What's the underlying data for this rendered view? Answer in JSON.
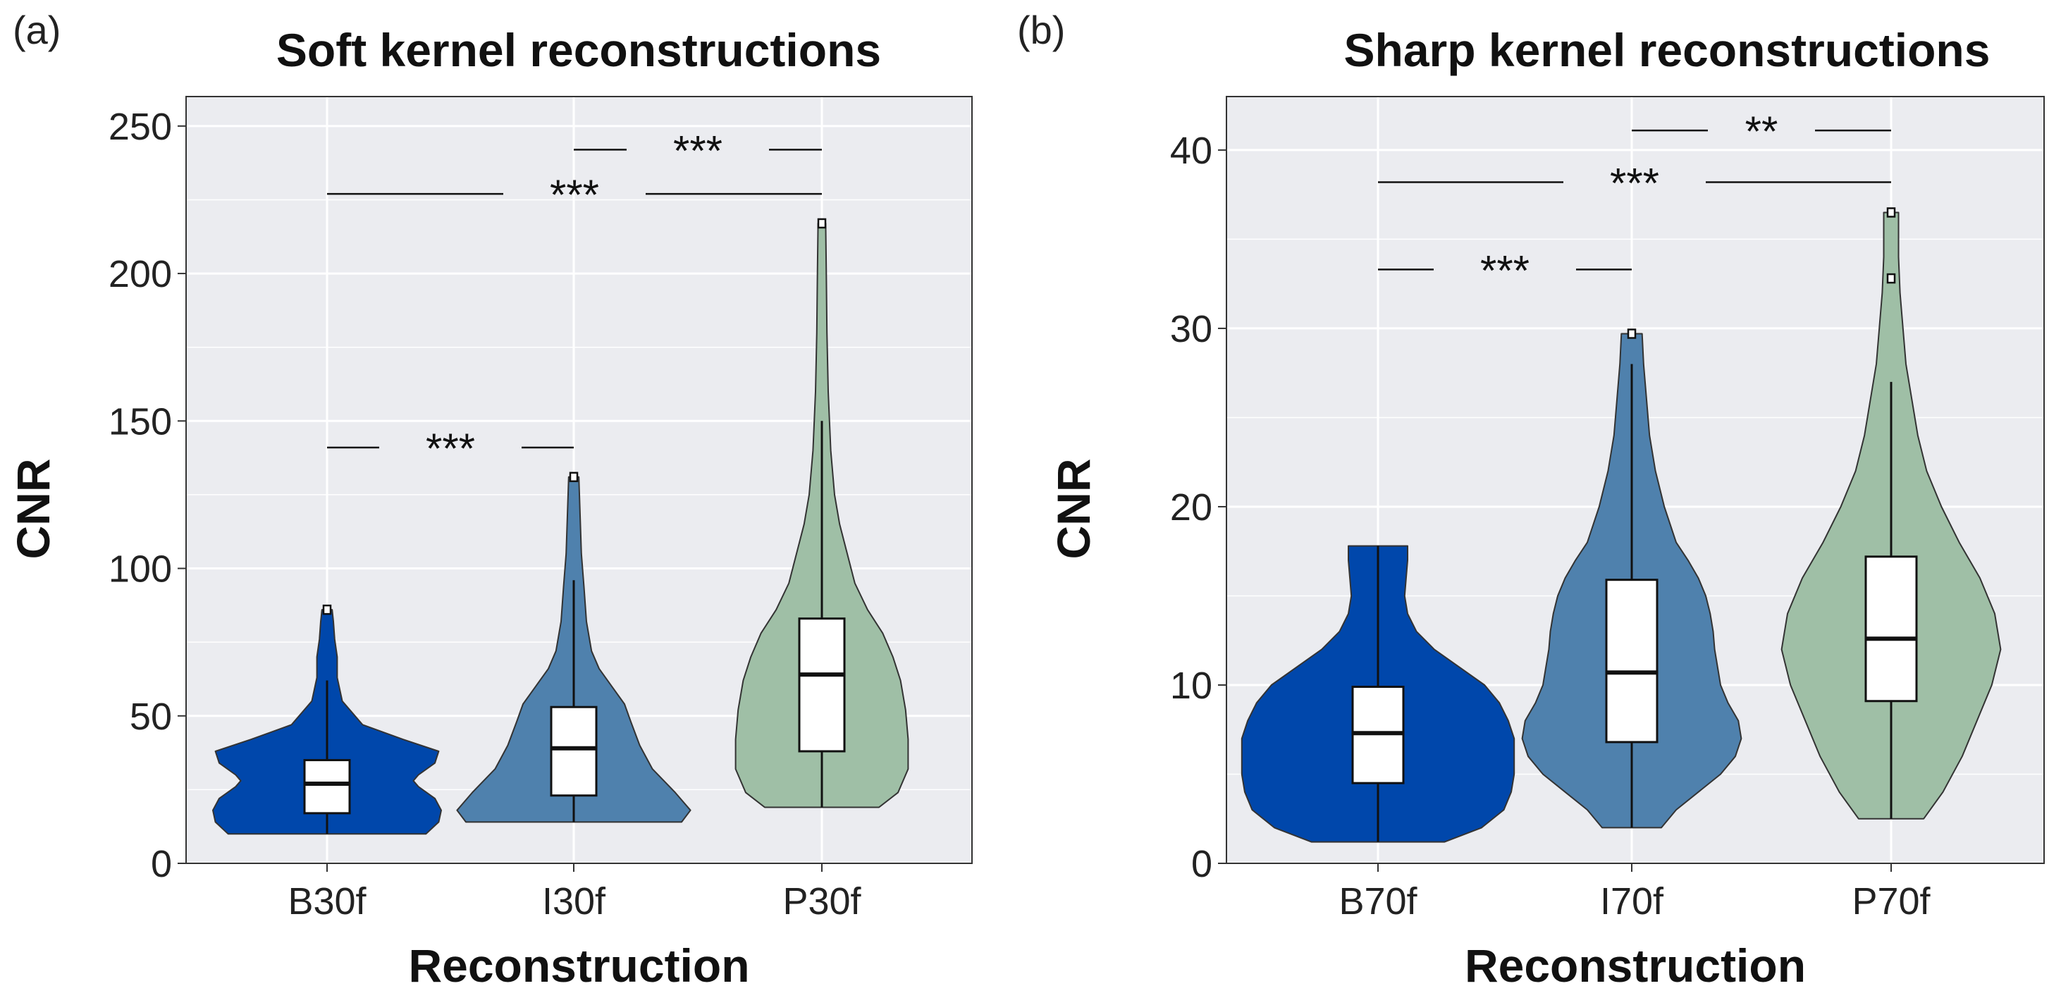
{
  "chart_data": [
    {
      "type": "violin",
      "panel_label": "(a)",
      "title": "Soft kernel reconstructions",
      "xlabel": "Reconstruction",
      "ylabel": "CNR",
      "ylim": [
        0,
        260
      ],
      "yticks": [
        0,
        50,
        100,
        150,
        200,
        250
      ],
      "categories": [
        "B30f",
        "I30f",
        "P30f"
      ],
      "colors": [
        "#0047AB",
        "#4F81AD",
        "#9FBFA6"
      ],
      "series": [
        {
          "name": "B30f",
          "box": {
            "q1": 17,
            "median": 27,
            "q3": 35,
            "whisker_low": 10,
            "whisker_high": 62
          },
          "outliers": [
            86
          ],
          "density": [
            [
              10,
              0.78
            ],
            [
              14,
              0.88
            ],
            [
              18,
              0.9
            ],
            [
              22,
              0.85
            ],
            [
              26,
              0.72
            ],
            [
              28,
              0.68
            ],
            [
              30,
              0.72
            ],
            [
              34,
              0.85
            ],
            [
              38,
              0.88
            ],
            [
              42,
              0.6
            ],
            [
              47,
              0.28
            ],
            [
              55,
              0.12
            ],
            [
              63,
              0.08
            ],
            [
              70,
              0.08
            ],
            [
              76,
              0.06
            ],
            [
              82,
              0.05
            ],
            [
              86,
              0.04
            ]
          ]
        },
        {
          "name": "I30f",
          "box": {
            "q1": 23,
            "median": 39,
            "q3": 53,
            "whisker_low": 14,
            "whisker_high": 96
          },
          "outliers": [
            131
          ],
          "density": [
            [
              14,
              0.85
            ],
            [
              18,
              0.92
            ],
            [
              24,
              0.8
            ],
            [
              32,
              0.62
            ],
            [
              40,
              0.52
            ],
            [
              48,
              0.45
            ],
            [
              54,
              0.4
            ],
            [
              60,
              0.3
            ],
            [
              66,
              0.2
            ],
            [
              72,
              0.14
            ],
            [
              82,
              0.1
            ],
            [
              94,
              0.08
            ],
            [
              105,
              0.06
            ],
            [
              118,
              0.05
            ],
            [
              131,
              0.04
            ]
          ]
        },
        {
          "name": "P30f",
          "box": {
            "q1": 38,
            "median": 64,
            "q3": 83,
            "whisker_low": 19,
            "whisker_high": 150
          },
          "outliers": [
            217
          ],
          "density": [
            [
              19,
              0.45
            ],
            [
              24,
              0.6
            ],
            [
              32,
              0.68
            ],
            [
              42,
              0.68
            ],
            [
              52,
              0.66
            ],
            [
              62,
              0.62
            ],
            [
              70,
              0.56
            ],
            [
              78,
              0.48
            ],
            [
              86,
              0.36
            ],
            [
              95,
              0.26
            ],
            [
              105,
              0.2
            ],
            [
              115,
              0.14
            ],
            [
              125,
              0.1
            ],
            [
              140,
              0.07
            ],
            [
              160,
              0.05
            ],
            [
              180,
              0.04
            ],
            [
              200,
              0.035
            ],
            [
              217,
              0.03
            ]
          ]
        }
      ],
      "significance": [
        {
          "from": "B30f",
          "to": "I30f",
          "y": 141,
          "label": "***"
        },
        {
          "from": "B30f",
          "to": "P30f",
          "y": 227,
          "label": "***"
        },
        {
          "from": "I30f",
          "to": "P30f",
          "y": 242,
          "label": "***"
        }
      ]
    },
    {
      "type": "violin",
      "panel_label": "(b)",
      "title": "Sharp kernel reconstructions",
      "xlabel": "Reconstruction",
      "ylabel": "CNR",
      "ylim": [
        0,
        43
      ],
      "yticks": [
        0,
        10,
        20,
        30,
        40
      ],
      "categories": [
        "B70f",
        "I70f",
        "P70f"
      ],
      "colors": [
        "#0047AB",
        "#4F81AD",
        "#9FBFA6"
      ],
      "series": [
        {
          "name": "B70f",
          "box": {
            "q1": 4.5,
            "median": 7.3,
            "q3": 9.9,
            "whisker_low": 1.2,
            "whisker_high": 17.8
          },
          "outliers": [],
          "density": [
            [
              1.2,
              0.45
            ],
            [
              2,
              0.7
            ],
            [
              3,
              0.85
            ],
            [
              4,
              0.9
            ],
            [
              5,
              0.92
            ],
            [
              6,
              0.92
            ],
            [
              7,
              0.92
            ],
            [
              8,
              0.88
            ],
            [
              9,
              0.82
            ],
            [
              10,
              0.72
            ],
            [
              11,
              0.55
            ],
            [
              12,
              0.38
            ],
            [
              13,
              0.26
            ],
            [
              14,
              0.2
            ],
            [
              15,
              0.18
            ],
            [
              16,
              0.19
            ],
            [
              17,
              0.2
            ],
            [
              17.8,
              0.2
            ]
          ]
        },
        {
          "name": "I70f",
          "box": {
            "q1": 6.8,
            "median": 10.7,
            "q3": 15.9,
            "whisker_low": 2.0,
            "whisker_high": 28
          },
          "outliers": [
            29.7
          ],
          "density": [
            [
              2,
              0.2
            ],
            [
              3,
              0.3
            ],
            [
              4,
              0.45
            ],
            [
              5,
              0.6
            ],
            [
              6,
              0.7
            ],
            [
              7,
              0.74
            ],
            [
              8,
              0.72
            ],
            [
              9,
              0.65
            ],
            [
              10,
              0.6
            ],
            [
              11,
              0.58
            ],
            [
              12,
              0.56
            ],
            [
              13,
              0.55
            ],
            [
              14,
              0.53
            ],
            [
              15,
              0.5
            ],
            [
              16,
              0.45
            ],
            [
              17,
              0.38
            ],
            [
              18,
              0.3
            ],
            [
              20,
              0.22
            ],
            [
              22,
              0.16
            ],
            [
              24,
              0.12
            ],
            [
              26,
              0.1
            ],
            [
              28,
              0.08
            ],
            [
              29.7,
              0.07
            ]
          ]
        },
        {
          "name": "P70f",
          "box": {
            "q1": 9.1,
            "median": 12.6,
            "q3": 17.2,
            "whisker_low": 2.5,
            "whisker_high": 27
          },
          "outliers": [
            32.8,
            36.5
          ],
          "density": [
            [
              2.5,
              0.22
            ],
            [
              4,
              0.35
            ],
            [
              6,
              0.48
            ],
            [
              8,
              0.58
            ],
            [
              10,
              0.68
            ],
            [
              12,
              0.74
            ],
            [
              14,
              0.7
            ],
            [
              16,
              0.6
            ],
            [
              18,
              0.46
            ],
            [
              20,
              0.34
            ],
            [
              22,
              0.24
            ],
            [
              24,
              0.18
            ],
            [
              26,
              0.14
            ],
            [
              28,
              0.1
            ],
            [
              30,
              0.08
            ],
            [
              32,
              0.06
            ],
            [
              34,
              0.05
            ],
            [
              36.5,
              0.05
            ]
          ]
        }
      ],
      "significance": [
        {
          "from": "B70f",
          "to": "I70f",
          "y": 33.3,
          "label": "***"
        },
        {
          "from": "B70f",
          "to": "P70f",
          "y": 38.2,
          "label": "***"
        },
        {
          "from": "I70f",
          "to": "P70f",
          "y": 41.1,
          "label": "**"
        }
      ]
    }
  ]
}
